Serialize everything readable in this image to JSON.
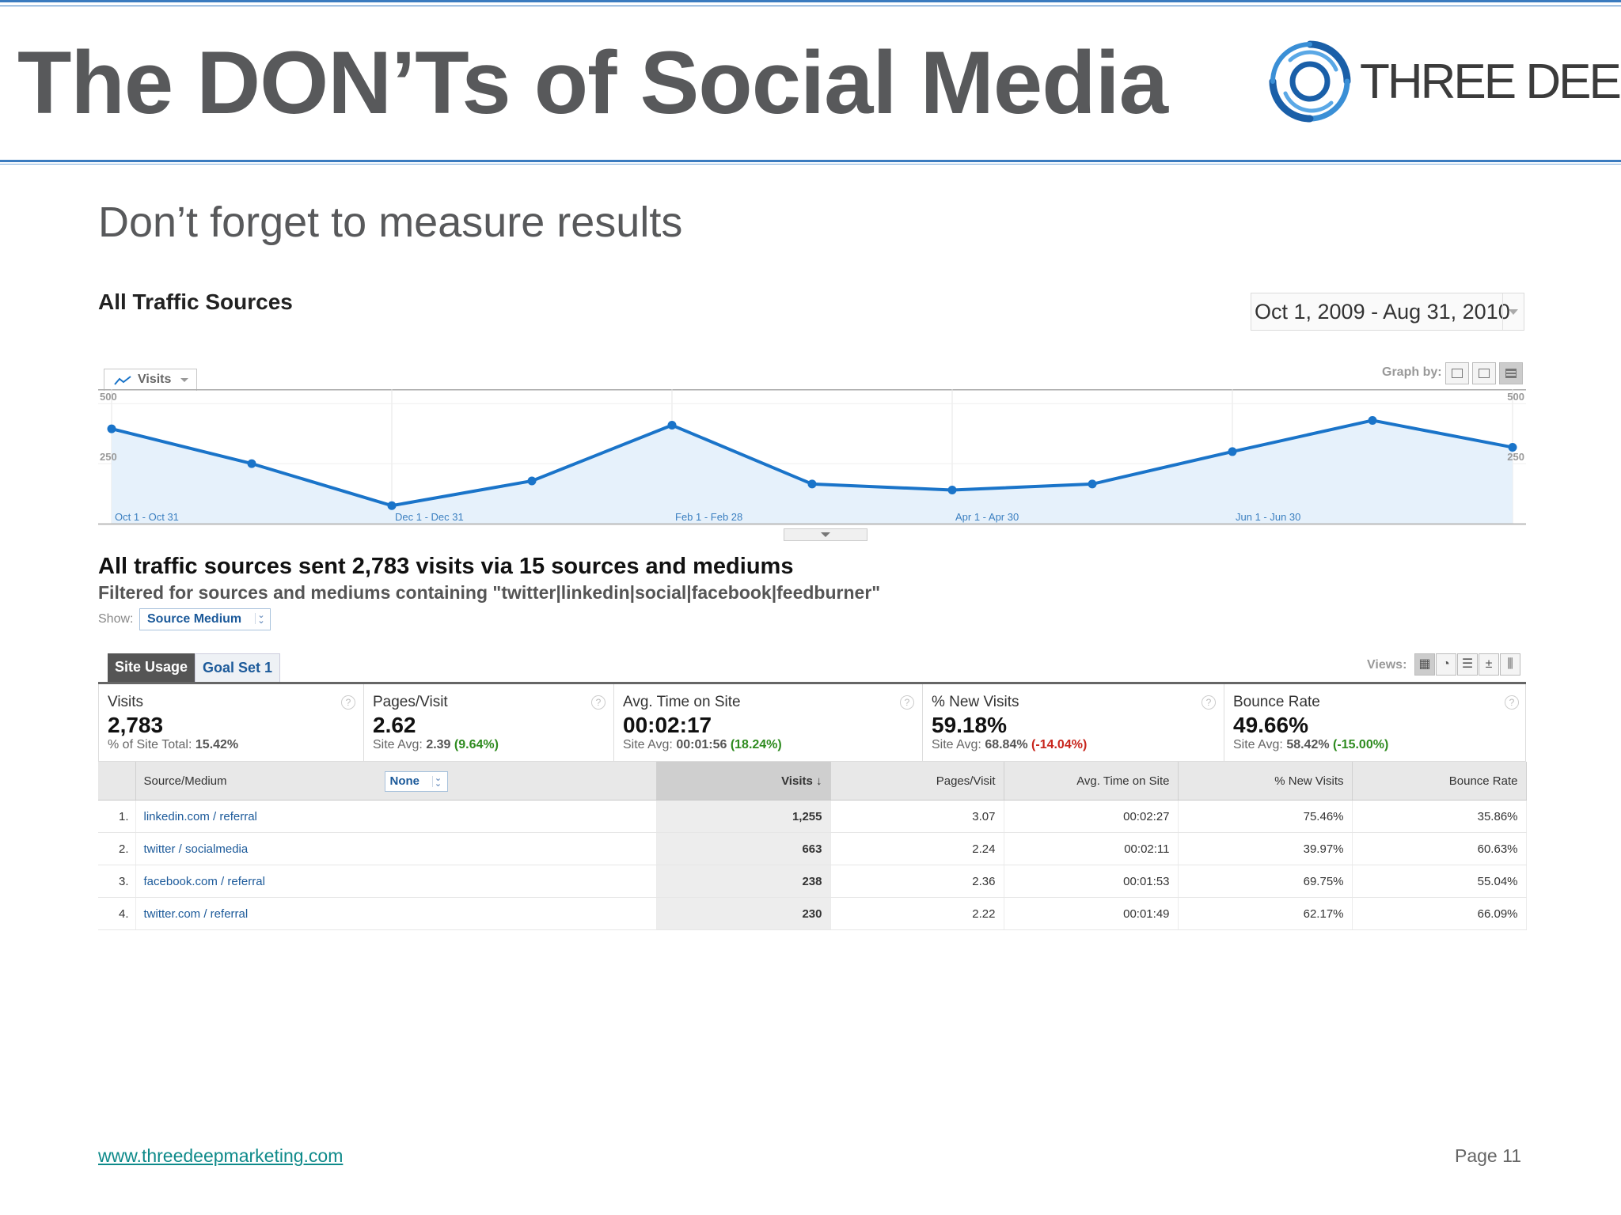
{
  "header": {
    "title": "The DON’Ts of Social Media",
    "logo_text": "THREE DEEP",
    "colors": {
      "rule": "#3a7bbf",
      "title": "#58595b"
    }
  },
  "slide": {
    "subtitle": "Don’t forget to measure results"
  },
  "report": {
    "section_title": "All Traffic Sources",
    "date_range": "Oct 1, 2009 - Aug 31, 2010",
    "metric_tab": "Visits",
    "graph_by_label": "Graph by:",
    "summary_headline": "All traffic sources sent 2,783 visits via 15 sources and mediums",
    "filter_text": "Filtered for sources and mediums containing \"twitter|linkedin|social|facebook|feedburner\"",
    "show_label": "Show:",
    "show_value": "Source Medium",
    "tabs": [
      "Site Usage",
      "Goal Set 1"
    ],
    "views_label": "Views:"
  },
  "chart_data": {
    "type": "area",
    "series": [
      {
        "name": "Visits",
        "values": [
          395,
          250,
          75,
          178,
          410,
          165,
          140,
          165,
          300,
          430,
          318
        ]
      }
    ],
    "x_index": [
      0,
      1,
      2,
      3,
      4,
      5,
      6,
      7,
      8,
      9,
      10
    ],
    "x_labels": [
      {
        "at": 0,
        "label": "Oct 1 - Oct 31"
      },
      {
        "at": 2,
        "label": "Dec 1 - Dec 31"
      },
      {
        "at": 4,
        "label": "Feb 1 - Feb 28"
      },
      {
        "at": 6,
        "label": "Apr 1 - Apr 30"
      },
      {
        "at": 8,
        "label": "Jun 1 - Jun 30"
      }
    ],
    "y_ticks": [
      500,
      250
    ],
    "ylim": [
      0,
      560
    ],
    "grid": true,
    "color": "#1a74c9",
    "fill": "#e6f1fb"
  },
  "scorecard": [
    {
      "name": "Visits",
      "value": "2,783",
      "sub_label": "% of Site Total:",
      "sub_value": "15.42%",
      "delta": ""
    },
    {
      "name": "Pages/Visit",
      "value": "2.62",
      "sub_label": "Site Avg:",
      "sub_value": "2.39",
      "delta": "(9.64%)",
      "delta_type": "pos"
    },
    {
      "name": "Avg. Time on Site",
      "value": "00:02:17",
      "sub_label": "Site Avg:",
      "sub_value": "00:01:56",
      "delta": "(18.24%)",
      "delta_type": "pos"
    },
    {
      "name": "% New Visits",
      "value": "59.18%",
      "sub_label": "Site Avg:",
      "sub_value": "68.84%",
      "delta": "(-14.04%)",
      "delta_type": "neg"
    },
    {
      "name": "Bounce Rate",
      "value": "49.66%",
      "sub_label": "Site Avg:",
      "sub_value": "58.42%",
      "delta": "(-15.00%)",
      "delta_type": "pos"
    }
  ],
  "table": {
    "columns": [
      "Source/Medium",
      "Visits",
      "Pages/Visit",
      "Avg. Time on Site",
      "% New Visits",
      "Bounce Rate"
    ],
    "secondary_dimension": "None",
    "rows": [
      {
        "idx": "1.",
        "source": "linkedin.com / referral",
        "visits": "1,255",
        "pages": "3.07",
        "time": "00:02:27",
        "new": "75.46%",
        "bounce": "35.86%"
      },
      {
        "idx": "2.",
        "source": "twitter / socialmedia",
        "visits": "663",
        "pages": "2.24",
        "time": "00:02:11",
        "new": "39.97%",
        "bounce": "60.63%"
      },
      {
        "idx": "3.",
        "source": "facebook.com / referral",
        "visits": "238",
        "pages": "2.36",
        "time": "00:01:53",
        "new": "69.75%",
        "bounce": "55.04%"
      },
      {
        "idx": "4.",
        "source": "twitter.com / referral",
        "visits": "230",
        "pages": "2.22",
        "time": "00:01:49",
        "new": "62.17%",
        "bounce": "66.09%"
      }
    ]
  },
  "footer": {
    "website": "www.threedeepmarketing.com",
    "page": "Page 11"
  }
}
